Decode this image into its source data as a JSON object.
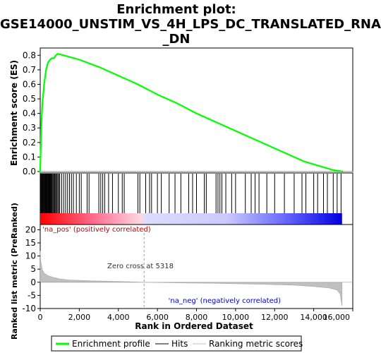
{
  "title_lines": [
    "Enrichment plot:",
    "GSE14000_UNSTIM_VS_4H_LPS_DC_TRANSLATED_RNA",
    "_DN"
  ],
  "colors": {
    "enrichment": "#00ff00",
    "hits": "#000000",
    "ranking": "#c0c0c0",
    "positive_band": "#ff0000",
    "negative_band": "#0000ff"
  },
  "chart_data": [
    {
      "type": "line",
      "panel": "enrichment",
      "ylabel": "Enrichment score (ES)",
      "ylim": [
        0,
        0.85
      ],
      "yticks": [
        0.0,
        0.1,
        0.2,
        0.3,
        0.4,
        0.5,
        0.6,
        0.7,
        0.8
      ],
      "xlim": [
        0,
        16000
      ],
      "series": [
        {
          "name": "Enrichment profile",
          "points": [
            [
              0,
              0.0
            ],
            [
              50,
              0.3
            ],
            [
              100,
              0.45
            ],
            [
              200,
              0.6
            ],
            [
              300,
              0.7
            ],
            [
              400,
              0.75
            ],
            [
              500,
              0.77
            ],
            [
              600,
              0.78
            ],
            [
              700,
              0.78
            ],
            [
              800,
              0.8
            ],
            [
              900,
              0.81
            ],
            [
              1200,
              0.8
            ],
            [
              2000,
              0.77
            ],
            [
              3000,
              0.72
            ],
            [
              4000,
              0.66
            ],
            [
              5000,
              0.6
            ],
            [
              6000,
              0.53
            ],
            [
              7000,
              0.47
            ],
            [
              8000,
              0.4
            ],
            [
              9000,
              0.34
            ],
            [
              10000,
              0.28
            ],
            [
              11000,
              0.22
            ],
            [
              12000,
              0.16
            ],
            [
              13000,
              0.1
            ],
            [
              13500,
              0.07
            ],
            [
              14000,
              0.05
            ],
            [
              14500,
              0.03
            ],
            [
              15000,
              0.01
            ],
            [
              15500,
              0.0
            ]
          ]
        }
      ]
    },
    {
      "type": "scatter",
      "panel": "hits",
      "series": [
        {
          "name": "Hits",
          "x": [
            20,
            50,
            80,
            110,
            140,
            170,
            200,
            230,
            260,
            290,
            320,
            350,
            380,
            410,
            440,
            470,
            500,
            530,
            560,
            600,
            640,
            680,
            720,
            760,
            800,
            850,
            900,
            950,
            1000,
            1100,
            1200,
            1300,
            1400,
            1500,
            1600,
            1700,
            1850,
            2000,
            2100,
            2400,
            2500,
            3000,
            3100,
            3200,
            3300,
            3500,
            3700,
            4000,
            4200,
            4300,
            5000,
            5100,
            5400,
            5600,
            5700,
            6000,
            6200,
            6600,
            6900,
            7200,
            7600,
            7800,
            8000,
            8400,
            8500,
            9000,
            9100,
            9200,
            9300,
            9500,
            9800,
            10000,
            10500,
            10800,
            11000,
            11200,
            11600,
            12000,
            12500,
            13000,
            13400,
            13600,
            14000,
            14200,
            14500,
            14700,
            15000,
            15200,
            15400
          ]
        }
      ]
    },
    {
      "type": "area",
      "panel": "ranking",
      "ylabel": "Ranked list metric (PreRanked)",
      "xlabel": "Rank in Ordered Dataset",
      "ylim": [
        -10,
        22
      ],
      "yticks": [
        -10,
        -5,
        0,
        5,
        10,
        15,
        20
      ],
      "xticks": [
        0,
        2000,
        4000,
        6000,
        8000,
        10000,
        12000,
        14000,
        16000
      ],
      "xlim": [
        0,
        16000
      ],
      "series": [
        {
          "name": "Ranking metric scores",
          "points": [
            [
              0,
              12
            ],
            [
              30,
              8
            ],
            [
              100,
              5
            ],
            [
              200,
              3.5
            ],
            [
              400,
              2.5
            ],
            [
              700,
              1.8
            ],
            [
              1000,
              1.3
            ],
            [
              1500,
              0.9
            ],
            [
              2500,
              0.6
            ],
            [
              4000,
              0.3
            ],
            [
              5318,
              0.0
            ],
            [
              7000,
              -0.2
            ],
            [
              9000,
              -0.4
            ],
            [
              11000,
              -0.7
            ],
            [
              13000,
              -1.1
            ],
            [
              14000,
              -1.6
            ],
            [
              14800,
              -2.2
            ],
            [
              15200,
              -3
            ],
            [
              15350,
              -4.5
            ],
            [
              15450,
              -9
            ]
          ]
        }
      ],
      "annotations": [
        "'na_pos' (positively correlated)",
        "Zero cross at 5318",
        "'na_neg' (negatively correlated)"
      ]
    }
  ],
  "legend": [
    "Enrichment profile",
    "Hits",
    "Ranking metric scores"
  ]
}
